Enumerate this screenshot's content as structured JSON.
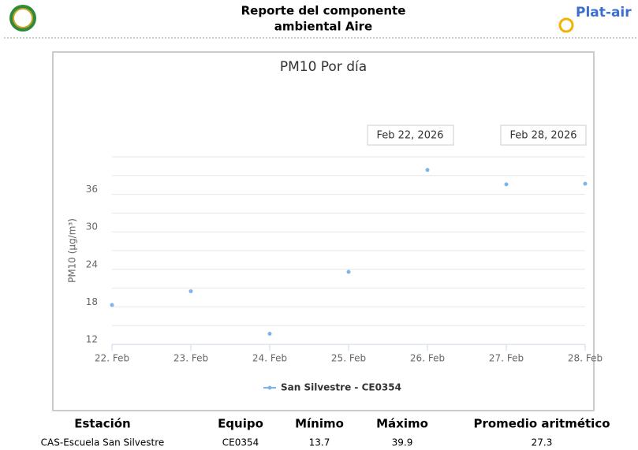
{
  "header": {
    "title_line1": "Reporte del componente",
    "title_line2": "ambiental Aire",
    "brand": "Plat-air"
  },
  "chart_data": {
    "type": "line",
    "title": "PM10 Por día",
    "y_label": "PM10 (µg/m³)",
    "range_from": "Feb 22, 2026",
    "range_to": "Feb 28, 2026",
    "categories": [
      "22. Feb",
      "23. Feb",
      "24. Feb",
      "25. Feb",
      "26. Feb",
      "27. Feb",
      "28. Feb"
    ],
    "series": [
      {
        "name": "San Silvestre - CE0354",
        "color": "#7cb5ec",
        "values": [
          18.3,
          20.5,
          13.7,
          23.6,
          39.9,
          37.6,
          37.7
        ]
      }
    ],
    "ylim": [
      12,
      42
    ],
    "yticks": [
      12,
      18,
      24,
      30,
      36
    ],
    "ygrid": [
      12,
      15,
      18,
      21,
      24,
      27,
      30,
      33,
      36,
      39,
      42
    ],
    "grid": true
  },
  "table": {
    "headers": [
      "Estación",
      "Equipo",
      "Mínimo",
      "Máximo",
      "Promedio aritmético"
    ],
    "rows": [
      [
        "CAS-Escuela San Silvestre",
        "CE0354",
        "13.7",
        "39.9",
        "27.3"
      ]
    ]
  }
}
